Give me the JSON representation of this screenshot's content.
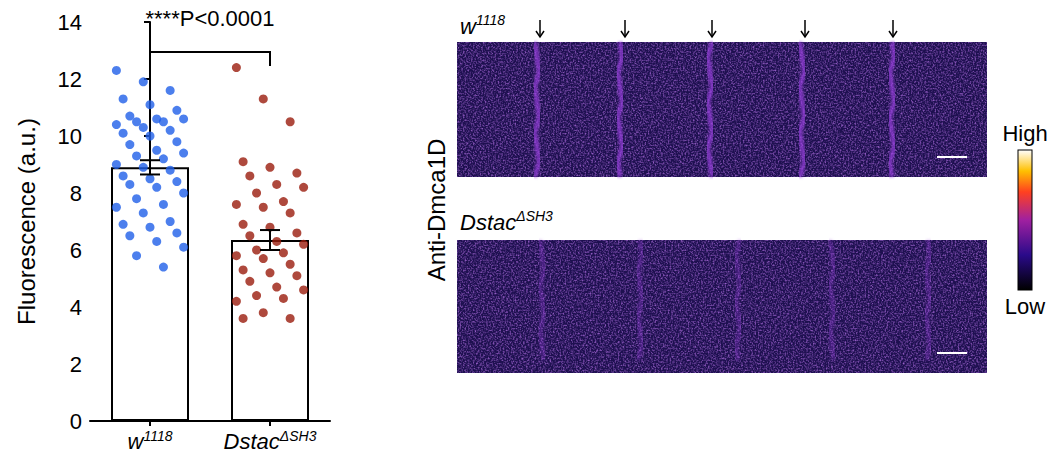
{
  "chart_data": {
    "type": "bar",
    "y_label": "Fluorescence (a.u.)",
    "categories": [
      "w1118",
      "DstacΔSH3"
    ],
    "values": [
      8.9,
      6.35
    ],
    "errors": [
      0.25,
      0.35
    ],
    "colors": [
      "#1f5fe8",
      "#9a1c0c"
    ],
    "points": [
      [
        12.3,
        11.9,
        11.6,
        11.3,
        11.1,
        10.9,
        10.7,
        10.6,
        10.6,
        10.5,
        10.5,
        10.4,
        10.3,
        10.2,
        10.1,
        10.0,
        9.8,
        9.7,
        9.5,
        9.4,
        9.3,
        9.2,
        9.0,
        8.9,
        8.8,
        8.6,
        8.5,
        8.4,
        8.3,
        8.2,
        8.0,
        7.8,
        7.6,
        7.5,
        7.3,
        7.0,
        6.9,
        6.8,
        6.6,
        6.5,
        6.3,
        6.1,
        5.8,
        5.4
      ],
      [
        12.4,
        11.3,
        10.5,
        9.1,
        8.9,
        8.7,
        8.6,
        8.3,
        8.2,
        8.0,
        7.7,
        7.6,
        7.5,
        7.3,
        6.9,
        6.8,
        6.6,
        6.5,
        6.3,
        6.2,
        6.0,
        5.9,
        5.8,
        5.7,
        5.5,
        5.3,
        5.2,
        5.1,
        4.9,
        4.7,
        4.6,
        4.4,
        4.3,
        4.2,
        3.8,
        3.6,
        3.6
      ]
    ],
    "annotation": "****P<0.0001",
    "ylim": [
      0,
      14
    ],
    "yticks": [
      0,
      2,
      4,
      6,
      8,
      10,
      12,
      14
    ],
    "grid": false
  },
  "micrographs": {
    "stain": "Anti-Dmca1D",
    "panels": [
      "w1118",
      "DstacΔSH3"
    ],
    "colorbar": {
      "high": "High",
      "low": "Low"
    }
  }
}
